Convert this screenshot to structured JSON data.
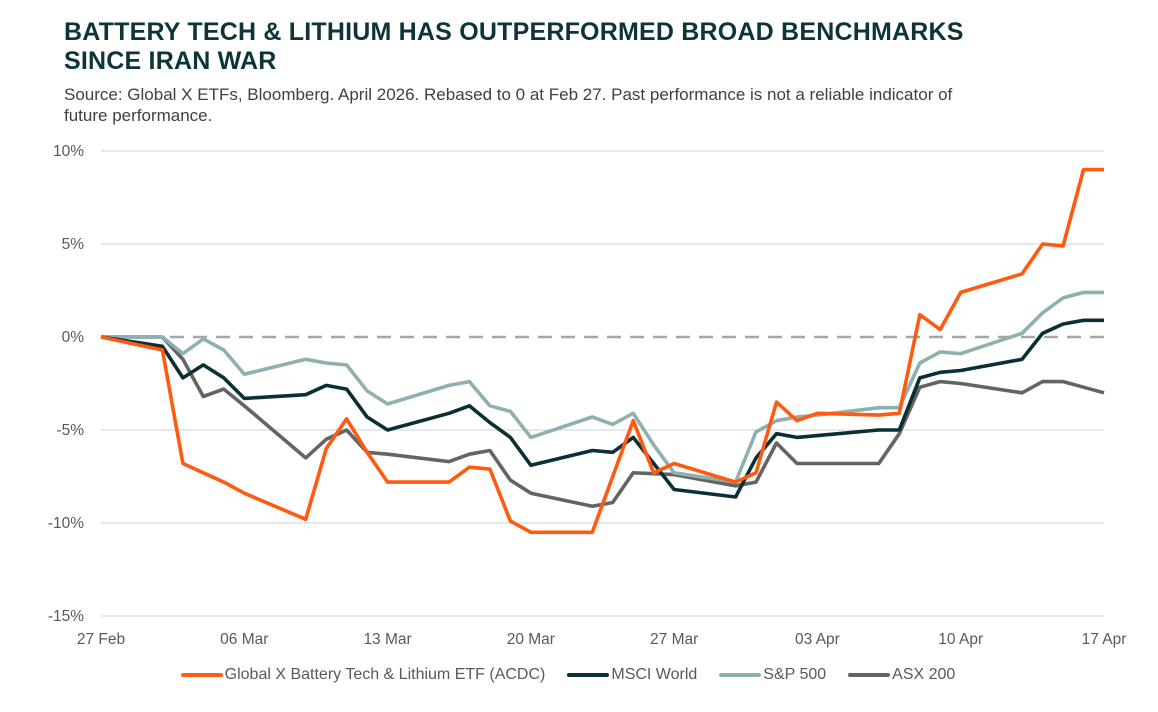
{
  "title": "BATTERY TECH & LITHIUM HAS OUTPERFORMED BROAD BENCHMARKS SINCE IRAN WAR",
  "subtitle": "Source: Global X ETFs, Bloomberg. April 2026. Rebased to 0 at Feb 27. Past performance is not a reliable indicator of future performance.",
  "chart_data": {
    "type": "line",
    "title": "BATTERY TECH & LITHIUM HAS OUTPERFORMED BROAD BENCHMARKS SINCE IRAN WAR",
    "xlabel": "",
    "ylabel": "",
    "ylim": [
      -15,
      10
    ],
    "yticks": [
      10,
      5,
      0,
      -5,
      -10,
      -15
    ],
    "ytick_labels": [
      "10%",
      "5%",
      "0%",
      "-5%",
      "-10%",
      "-15%"
    ],
    "xlim": [
      "2026-02-27",
      "2026-04-17"
    ],
    "xticks": [
      "2026-02-27",
      "2026-03-06",
      "2026-03-13",
      "2026-03-20",
      "2026-03-27",
      "2026-04-03",
      "2026-04-10",
      "2026-04-17"
    ],
    "xtick_labels": [
      "27 Feb",
      "06 Mar",
      "13 Mar",
      "20 Mar",
      "27 Mar",
      "03 Apr",
      "10 Apr",
      "17 Apr"
    ],
    "grid": "horizontal",
    "zero_line": "dashed",
    "legend_position": "bottom",
    "x": [
      "2026-02-27",
      "2026-03-02",
      "2026-03-03",
      "2026-03-04",
      "2026-03-05",
      "2026-03-06",
      "2026-03-09",
      "2026-03-10",
      "2026-03-11",
      "2026-03-12",
      "2026-03-13",
      "2026-03-16",
      "2026-03-17",
      "2026-03-18",
      "2026-03-19",
      "2026-03-20",
      "2026-03-23",
      "2026-03-24",
      "2026-03-25",
      "2026-03-26",
      "2026-03-27",
      "2026-03-30",
      "2026-03-31",
      "2026-04-01",
      "2026-04-02",
      "2026-04-03",
      "2026-04-06",
      "2026-04-07",
      "2026-04-08",
      "2026-04-09",
      "2026-04-10",
      "2026-04-13",
      "2026-04-14",
      "2026-04-15",
      "2026-04-16",
      "2026-04-17"
    ],
    "series": [
      {
        "name": "Global X Battery Tech & Lithium ETF (ACDC)",
        "color": "#ff5a0f",
        "values": [
          0,
          -0.7,
          -6.8,
          -7.3,
          -7.8,
          -8.4,
          -9.8,
          -6.0,
          -4.4,
          -6.2,
          -7.8,
          -7.8,
          -7.0,
          -7.1,
          -9.9,
          -10.5,
          -10.5,
          -7.5,
          -4.5,
          -7.3,
          -6.8,
          -7.8,
          -7.3,
          -3.5,
          -4.5,
          -4.1,
          -4.2,
          -4.1,
          1.2,
          0.4,
          2.4,
          3.4,
          5.0,
          4.9,
          9.0,
          9.0
        ]
      },
      {
        "name": "MSCI World",
        "color": "#0b2f35",
        "values": [
          0,
          -0.5,
          -2.2,
          -1.5,
          -2.2,
          -3.3,
          -3.1,
          -2.6,
          -2.8,
          -4.3,
          -5.0,
          -4.1,
          -3.7,
          -4.6,
          -5.4,
          -6.9,
          -6.1,
          -6.2,
          -5.4,
          -6.8,
          -8.2,
          -8.6,
          -6.5,
          -5.2,
          -5.4,
          -5.3,
          -5.0,
          -5.0,
          -2.2,
          -1.9,
          -1.8,
          -1.2,
          0.2,
          0.7,
          0.9,
          0.9
        ]
      },
      {
        "name": "S&P 500",
        "color": "#8fb0b0",
        "values": [
          0,
          0,
          -0.9,
          -0.1,
          -0.7,
          -2.0,
          -1.2,
          -1.4,
          -1.5,
          -2.9,
          -3.6,
          -2.6,
          -2.4,
          -3.7,
          -4.0,
          -5.4,
          -4.3,
          -4.7,
          -4.1,
          -5.8,
          -7.3,
          -7.8,
          -5.1,
          -4.5,
          -4.3,
          -4.2,
          -3.8,
          -3.8,
          -1.4,
          -0.8,
          -0.9,
          0.2,
          1.3,
          2.1,
          2.4,
          2.4
        ]
      },
      {
        "name": "ASX 200",
        "color": "#646464",
        "values": [
          0,
          0,
          -1.2,
          -3.2,
          -2.8,
          -3.7,
          -6.5,
          -5.5,
          -5.0,
          -6.2,
          -6.3,
          -6.7,
          -6.3,
          -6.1,
          -7.7,
          -8.4,
          -9.1,
          -8.9,
          -7.3,
          -7.35,
          -7.4,
          -8.0,
          -7.8,
          -5.7,
          -6.8,
          -6.8,
          -6.8,
          -5.2,
          -2.7,
          -2.4,
          -2.5,
          -3.0,
          -2.4,
          -2.4,
          -2.7,
          -3.0
        ]
      }
    ]
  }
}
